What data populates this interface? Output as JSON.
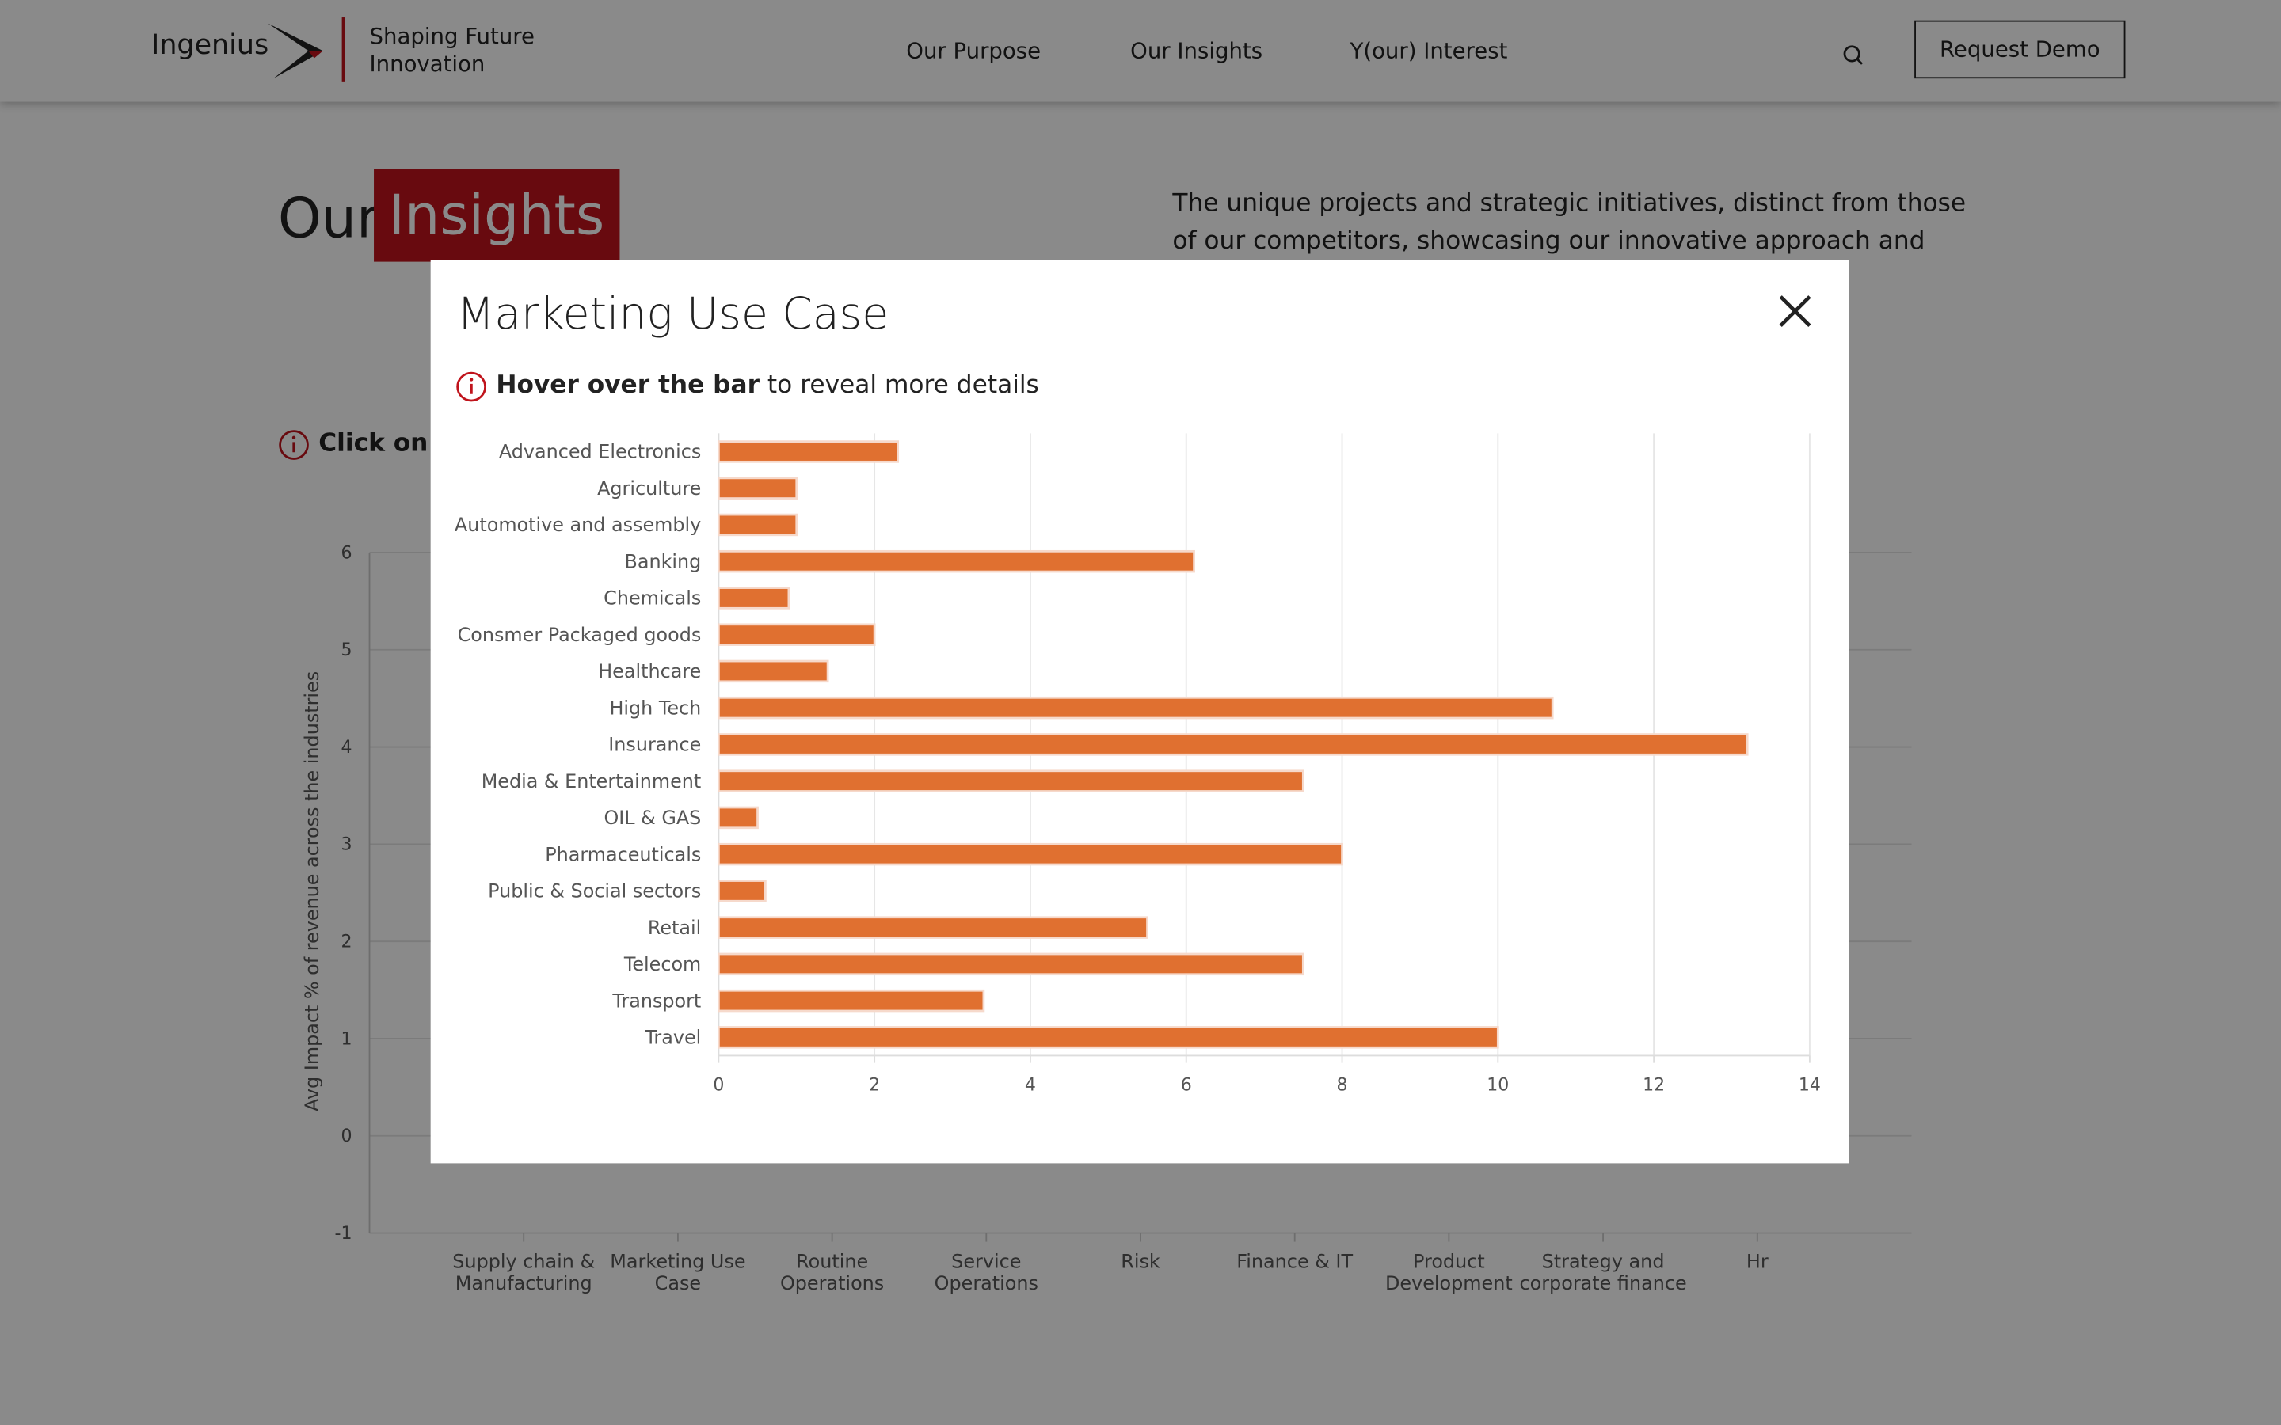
{
  "header": {
    "logo": "Ingenius",
    "tagline": [
      "Shaping Future",
      "Innovation"
    ],
    "nav": [
      "Our Purpose",
      "Our Insights",
      "Y(our) Interest"
    ],
    "button": "Request Demo"
  },
  "page": {
    "heading": "Our",
    "heading_highlight": "Insights",
    "description": "The unique projects and strategic initiatives, distinct from those of our competitors, showcasing our innovative approach and",
    "hint": "Click on"
  },
  "modal": {
    "title": "Marketing Use Case",
    "hint_bold": "Hover over the bar",
    "hint_rest": "to reveal more details"
  },
  "chart_data": [
    {
      "type": "hbar",
      "categories": [
        "Advanced Electronics",
        "Agriculture",
        "Automotive and assembly",
        "Banking",
        "Chemicals",
        "Consmer Packaged goods",
        "Healthcare",
        "High Tech",
        "Insurance",
        "Media & Entertainment",
        "OIL & GAS",
        "Pharmaceuticals",
        "Public & Social sectors",
        "Retail",
        "Telecom",
        "Transport",
        "Travel"
      ],
      "values": [
        2.3,
        1.0,
        1.0,
        6.1,
        0.9,
        2.0,
        1.4,
        10.7,
        13.2,
        7.5,
        0.5,
        8.0,
        0.6,
        5.5,
        7.5,
        3.4,
        10.0
      ],
      "color": "#e07030",
      "xlim": [
        0,
        14
      ],
      "xticks": [
        0,
        2,
        4,
        6,
        8,
        10,
        12,
        14
      ],
      "grid": true
    },
    {
      "type": "bar",
      "y_label": "Avg Impact % of revenue across the industries",
      "categories": [
        "Supply chain & Manufacturing",
        "Marketing Use Case",
        "Routine Operations",
        "Service Operations",
        "Risk",
        "Finance & IT",
        "Product Development",
        "Strategy and corporate finance",
        "Hr"
      ],
      "ylim": [
        -1,
        6
      ],
      "yticks": [
        -1,
        0,
        1,
        2,
        3,
        4,
        5,
        6
      ],
      "grid": true
    }
  ]
}
